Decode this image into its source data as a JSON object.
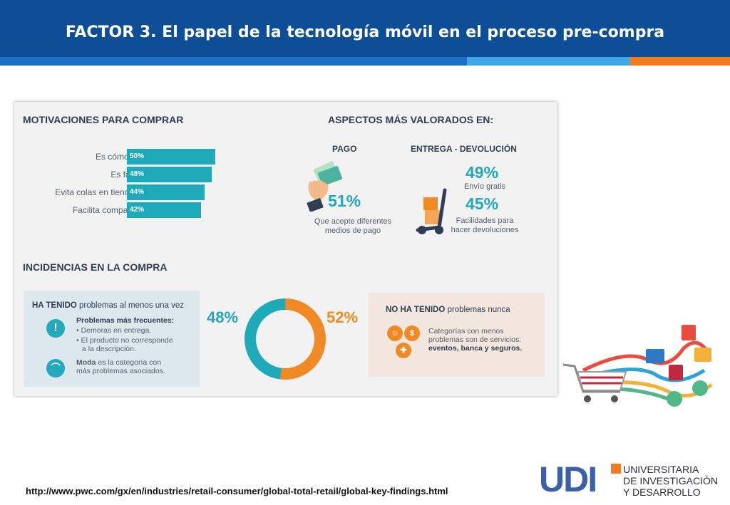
{
  "header": {
    "title": "FACTOR  3. El papel de la tecnología móvil en el proceso pre-compra"
  },
  "colors": {
    "header_bg": "#0e4e96",
    "teal": "#1eaab8",
    "orange": "#f08a24",
    "navy_text": "#2f3e55"
  },
  "infographic": {
    "motivations_title": "MOTIVACIONES PARA COMPRAR",
    "aspects_title": "ASPECTOS MÁS VALORADOS EN:",
    "pago_title": "PAGO",
    "pago_pct": "51%",
    "pago_desc_1": "Que acepte diferentes",
    "pago_desc_2": "medios de pago",
    "entrega_title": "ENTREGA - DEVOLUCIÓN",
    "envio_pct": "49%",
    "envio_desc": "Envío gratis",
    "devol_pct": "45%",
    "devol_desc_1": "Facilidades para",
    "devol_desc_2": "hacer devoluciones",
    "incidencias_title": "INCIDENCIAS EN LA COMPRA",
    "left_box": {
      "heading_bold": "HA TENIDO",
      "heading_rest": " problemas al menos una vez",
      "freq_title": "Problemas más frecuentes:",
      "item1": "Demoras en entrega.",
      "item2_1": "El producto no corresponde",
      "item2_2": "a la descripción.",
      "moda_bold": "Moda",
      "moda_rest": " es la categoría con",
      "moda_line2": "más problemas asociados."
    },
    "right_box": {
      "heading_bold": "NO HA TENIDO",
      "heading_rest": " problemas nunca",
      "line1": "Categorías con menos",
      "line2": "problemas son de servicios:",
      "line3": "eventos, banca y seguros."
    }
  },
  "chart_data": [
    {
      "type": "bar",
      "title": "MOTIVACIONES PARA COMPRAR",
      "categories": [
        "Es cómodo",
        "Es fácil",
        "Evita colas en tiendas",
        "Facilita comparar"
      ],
      "values": [
        50,
        48,
        44,
        42
      ],
      "value_labels": [
        "50%",
        "48%",
        "44%",
        "42%"
      ],
      "ylim": [
        0,
        100
      ]
    },
    {
      "type": "pie",
      "title": "INCIDENCIAS EN LA COMPRA",
      "categories": [
        "HA TENIDO problemas al menos una vez",
        "NO HA TENIDO problemas nunca"
      ],
      "values": [
        48,
        52
      ],
      "value_labels": [
        "48%",
        "52%"
      ],
      "colors": [
        "#1eaab8",
        "#f08a24"
      ]
    }
  ],
  "footer": {
    "url": "http://www.pwc.com/gx/en/industries/retail-consumer/global-total-retail/global-key-findings.html",
    "logo_mark": "UDI",
    "logo_line1": "UNIVERSITARIA",
    "logo_line2": "DE INVESTIGACIÓN",
    "logo_line3": "Y DESARROLLO"
  }
}
